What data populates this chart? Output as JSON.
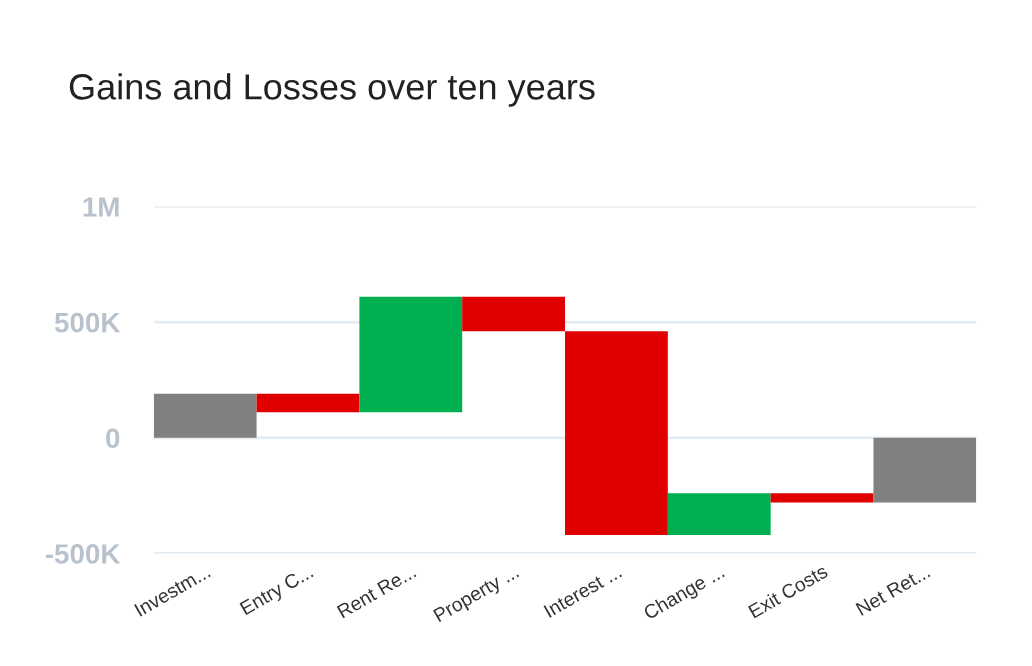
{
  "chart_data": {
    "type": "bar",
    "title": "Gains and Losses over ten years",
    "categories": [
      "Investm...",
      "Entry C...",
      "Rent Re...",
      "Property ...",
      "Interest ...",
      "Change ...",
      "Exit Costs",
      "Net Ret..."
    ],
    "values": [
      190000,
      -80000,
      500000,
      -150000,
      -880000,
      180000,
      -40000,
      -280000
    ],
    "base": [
      0,
      190000,
      110000,
      610000,
      460000,
      -420000,
      -240000,
      0
    ],
    "colors": [
      "#808080",
      "#e00000",
      "#00b050",
      "#e00000",
      "#e00000",
      "#00b050",
      "#e00000",
      "#808080"
    ],
    "ylim": [
      -500000,
      1000000
    ],
    "yticks": [
      {
        "value": -500000,
        "label": "-500K"
      },
      0,
      {
        "value": 500000,
        "label": "500K"
      },
      {
        "value": 1000000,
        "label": "1M"
      }
    ],
    "grid": "y"
  }
}
